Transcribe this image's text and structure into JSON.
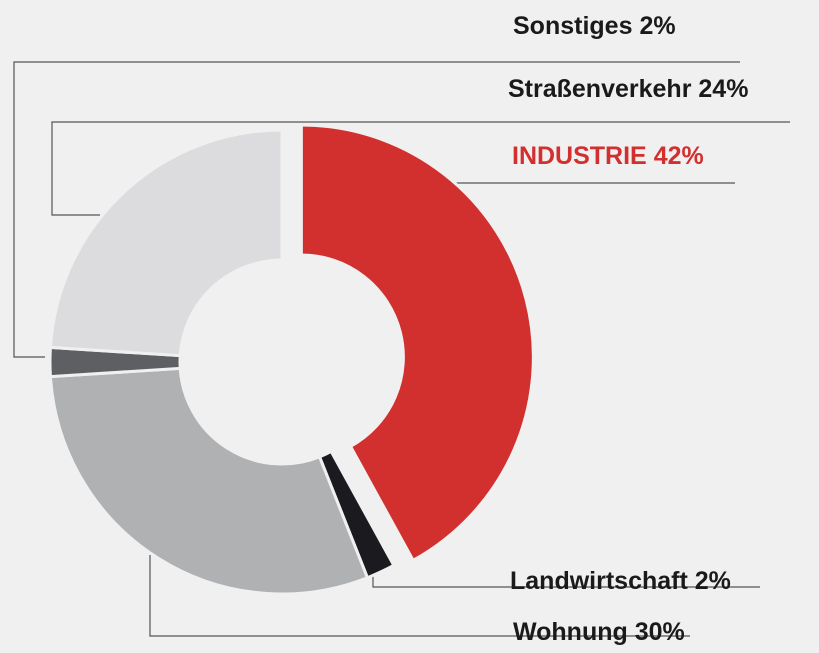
{
  "chart_data": {
    "type": "pie",
    "categories": [
      "INDUSTRIE",
      "Landwirtschaft",
      "Wohnung",
      "Sonstiges",
      "Straßenverkehr"
    ],
    "values": [
      42,
      2,
      30,
      2,
      24
    ],
    "value_labels": [
      "42%",
      "2%",
      "30%",
      "2%",
      "24%"
    ],
    "colors": [
      "#d1302f",
      "#1b1b1f",
      "#b0b1b3",
      "#5e5f63",
      "#dcdcde"
    ],
    "explode": [
      true,
      false,
      false,
      false,
      false
    ],
    "donut": true
  }
}
